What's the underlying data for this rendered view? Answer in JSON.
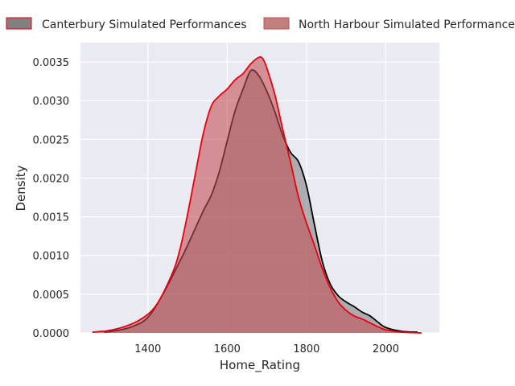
{
  "chart_data": {
    "type": "area",
    "xlabel": "Home_Rating",
    "ylabel": "Density",
    "xlim": [
      1230,
      2135
    ],
    "ylim": [
      0,
      0.00375
    ],
    "xticks": [
      1400,
      1600,
      1800,
      2000
    ],
    "xtick_labels": [
      "1400",
      "1600",
      "1800",
      "2000"
    ],
    "yticks": [
      0,
      0.0005,
      0.001,
      0.0015,
      0.002,
      0.0025,
      0.003,
      0.0035
    ],
    "ytick_labels": [
      "0.0000",
      "0.0005",
      "0.0010",
      "0.0015",
      "0.0020",
      "0.0025",
      "0.0030",
      "0.0035"
    ],
    "grid": true,
    "legend_position": "top",
    "series": [
      {
        "name": "Canterbury Simulated Performances",
        "line_color": "#000000",
        "fill_color": "#808080",
        "x": [
          1290,
          1320,
          1360,
          1400,
          1440,
          1480,
          1500,
          1540,
          1560,
          1580,
          1600,
          1620,
          1640,
          1660,
          1680,
          1700,
          1720,
          1740,
          1760,
          1780,
          1800,
          1820,
          1840,
          1860,
          1880,
          1900,
          1920,
          1940,
          1960,
          1980,
          2000,
          2040,
          2080
        ],
        "y": [
          1e-05,
          3e-05,
          8e-05,
          0.0002,
          0.00052,
          0.00092,
          0.00113,
          0.00158,
          0.00178,
          0.00208,
          0.00248,
          0.00287,
          0.00315,
          0.00339,
          0.00332,
          0.00312,
          0.00286,
          0.00255,
          0.00233,
          0.00221,
          0.0019,
          0.0014,
          0.00092,
          0.00063,
          0.00048,
          0.0004,
          0.00034,
          0.00027,
          0.00022,
          0.00014,
          7e-05,
          2e-05,
          1e-05
        ]
      },
      {
        "name": "North Harbour Simulated Performances",
        "line_color": "#e8000b",
        "fill_color": "#c44e52",
        "x": [
          1260,
          1300,
          1340,
          1380,
          1420,
          1460,
          1480,
          1500,
          1520,
          1540,
          1560,
          1580,
          1600,
          1620,
          1640,
          1660,
          1680,
          1690,
          1700,
          1720,
          1740,
          1760,
          1780,
          1800,
          1820,
          1840,
          1860,
          1880,
          1900,
          1920,
          1940,
          1960,
          1980,
          2000,
          2040,
          2090
        ],
        "y": [
          1e-05,
          3e-05,
          8e-05,
          0.00017,
          0.00035,
          0.00075,
          0.00106,
          0.00153,
          0.00206,
          0.00258,
          0.00293,
          0.00306,
          0.00315,
          0.00327,
          0.00335,
          0.00348,
          0.00356,
          0.00354,
          0.00342,
          0.00308,
          0.00263,
          0.0022,
          0.00175,
          0.00142,
          0.00113,
          0.00083,
          0.00058,
          0.0004,
          0.00029,
          0.00022,
          0.00018,
          0.00013,
          8e-05,
          4e-05,
          1e-05,
          0.0
        ]
      }
    ]
  }
}
